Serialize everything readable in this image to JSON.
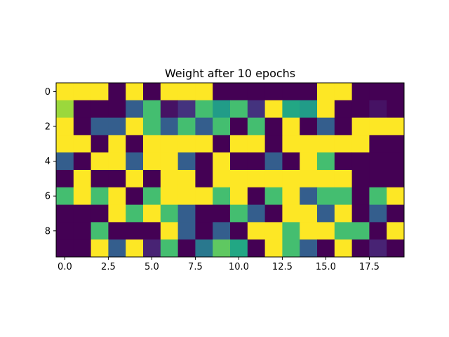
{
  "chart_data": {
    "type": "heatmap",
    "title": "Weight after 10 epochs",
    "xlabel": "",
    "ylabel": "",
    "rows": 10,
    "cols": 20,
    "xlim": [
      -0.5,
      19.5
    ],
    "ylim": [
      9.5,
      -0.5
    ],
    "grid": false,
    "colormap": "viridis",
    "value_range": [
      0,
      1
    ],
    "x_ticks": [
      0.0,
      2.5,
      5.0,
      7.5,
      10.0,
      12.5,
      15.0,
      17.5
    ],
    "x_tick_labels": [
      "0.0",
      "2.5",
      "5.0",
      "7.5",
      "10.0",
      "12.5",
      "15.0",
      "17.5"
    ],
    "y_ticks": [
      0,
      2,
      4,
      6,
      8
    ],
    "y_tick_labels": [
      "0",
      "2",
      "4",
      "6",
      "8"
    ],
    "values": [
      [
        1,
        1,
        1,
        0,
        1,
        0,
        1,
        1,
        1,
        0,
        0,
        0,
        0,
        0,
        0,
        1,
        1,
        0,
        0,
        0
      ],
      [
        0.85,
        0,
        0,
        0,
        0.3,
        0.7,
        0.05,
        0.15,
        0.7,
        0.55,
        0.7,
        0.15,
        1,
        0.6,
        0.55,
        1,
        0,
        0,
        0.05,
        0
      ],
      [
        1,
        0,
        0.3,
        0.3,
        1,
        0.7,
        0.3,
        0.7,
        0.3,
        0.7,
        0,
        0.7,
        0,
        1,
        0,
        0.3,
        0,
        1,
        1,
        1
      ],
      [
        1,
        1,
        0,
        1,
        0,
        1,
        1,
        1,
        1,
        0,
        1,
        1,
        0,
        1,
        1,
        1,
        1,
        1,
        0,
        0
      ],
      [
        0.3,
        0,
        1,
        1,
        0.3,
        1,
        1,
        0.3,
        0,
        1,
        0,
        0,
        0.3,
        0,
        1,
        0.7,
        0,
        0,
        0,
        0
      ],
      [
        0,
        1,
        0,
        0,
        1,
        0,
        1,
        1,
        0,
        1,
        1,
        1,
        1,
        1,
        1,
        1,
        1,
        0,
        0,
        0
      ],
      [
        0.7,
        1,
        0.7,
        1,
        0,
        0.7,
        1,
        1,
        1,
        0.7,
        1,
        0,
        0.7,
        1,
        0.3,
        0.7,
        0.7,
        0,
        0.7,
        1
      ],
      [
        0,
        0,
        0,
        1,
        0.7,
        1,
        0.7,
        0.3,
        0,
        0,
        0.7,
        0.3,
        0,
        1,
        1,
        0.3,
        1,
        0,
        0.3,
        0
      ],
      [
        0,
        0,
        0.7,
        0,
        0,
        0,
        1,
        0.3,
        0,
        0.3,
        0,
        1,
        1,
        0.7,
        1,
        1,
        0.7,
        0.7,
        0,
        1
      ],
      [
        0,
        0,
        1,
        0.3,
        1,
        0.1,
        0.7,
        0,
        0.4,
        0.75,
        0.6,
        0,
        1,
        0.7,
        0.3,
        0,
        1,
        0,
        0.1,
        0
      ]
    ]
  }
}
